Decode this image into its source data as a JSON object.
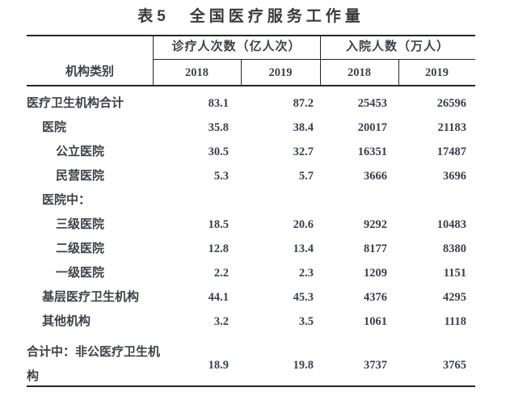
{
  "title": {
    "prefix": "表5",
    "main": "全国医疗服务工作量"
  },
  "table": {
    "row_header": "机构类别",
    "col_groups": [
      {
        "label": "诊疗人次数（亿人次）",
        "years": [
          "2018",
          "2019"
        ]
      },
      {
        "label": "入院人数（万人）",
        "years": [
          "2018",
          "2019"
        ]
      }
    ],
    "rows": [
      {
        "label": "医疗卫生机构合计",
        "indent": 0,
        "values": [
          "83.1",
          "87.2",
          "25453",
          "26596"
        ]
      },
      {
        "label": "医院",
        "indent": 1,
        "values": [
          "35.8",
          "38.4",
          "20017",
          "21183"
        ]
      },
      {
        "label": "公立医院",
        "indent": 2,
        "values": [
          "30.5",
          "32.7",
          "16351",
          "17487"
        ]
      },
      {
        "label": "民营医院",
        "indent": 2,
        "values": [
          "5.3",
          "5.7",
          "3666",
          "3696"
        ]
      },
      {
        "label": "医院中：",
        "indent": 1,
        "values": [
          "",
          "",
          "",
          ""
        ]
      },
      {
        "label": "三级医院",
        "indent": 2,
        "values": [
          "18.5",
          "20.6",
          "9292",
          "10483"
        ]
      },
      {
        "label": "二级医院",
        "indent": 2,
        "values": [
          "12.8",
          "13.4",
          "8177",
          "8380"
        ]
      },
      {
        "label": "一级医院",
        "indent": 2,
        "values": [
          "2.2",
          "2.3",
          "1209",
          "1151"
        ]
      },
      {
        "label": "基层医疗卫生机构",
        "indent": 1,
        "values": [
          "44.1",
          "45.3",
          "4376",
          "4295"
        ]
      },
      {
        "label": "其他机构",
        "indent": 1,
        "values": [
          "3.2",
          "3.5",
          "1061",
          "1118"
        ]
      },
      {
        "label": "合计中：非公医疗卫生机构",
        "indent": 0,
        "wrap": true,
        "values": [
          "18.9",
          "19.8",
          "3737",
          "3765"
        ]
      }
    ]
  },
  "colors": {
    "background": "#ffffff",
    "title": "#3a3a3a",
    "text": "#3e4149",
    "number": "#39404e",
    "rule": "#26262a"
  }
}
